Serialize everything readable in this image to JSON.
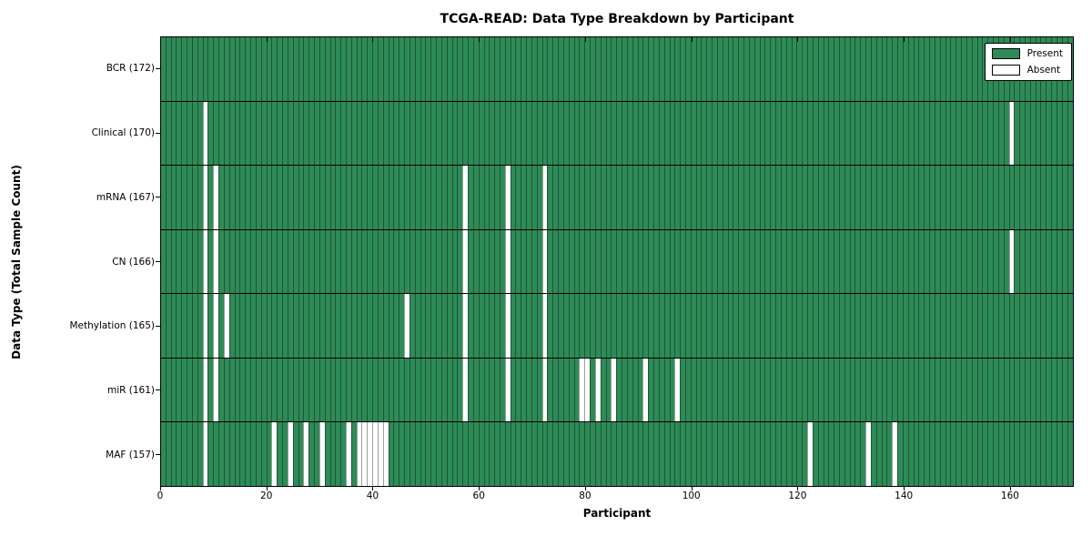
{
  "chart_data": {
    "type": "heatmap",
    "title": "TCGA-READ: Data Type Breakdown by Participant",
    "xlabel": "Participant",
    "ylabel": "Data Type (Total Sample Count)",
    "n_participants": 172,
    "x_ticks": [
      0,
      20,
      40,
      60,
      80,
      100,
      120,
      140,
      160
    ],
    "grid": "cell-borders",
    "legend_position": "upper-right",
    "colors": {
      "present": "#2e8b57",
      "absent": "#ffffff"
    },
    "legend": [
      {
        "label": "Present",
        "color": "#2e8b57"
      },
      {
        "label": "Absent",
        "color": "#ffffff"
      }
    ],
    "rows": [
      {
        "label": "BCR (172)",
        "data_type": "BCR",
        "total": 172,
        "absent_participants": []
      },
      {
        "label": "Clinical (170)",
        "data_type": "Clinical",
        "total": 170,
        "absent_participants": [
          8,
          160
        ]
      },
      {
        "label": "mRNA (167)",
        "data_type": "mRNA",
        "total": 167,
        "absent_participants": [
          8,
          10,
          57,
          65,
          72
        ]
      },
      {
        "label": "CN (166)",
        "data_type": "CN",
        "total": 166,
        "absent_participants": [
          8,
          10,
          57,
          65,
          72,
          160
        ]
      },
      {
        "label": "Methylation (165)",
        "data_type": "Methylation",
        "total": 165,
        "absent_participants": [
          8,
          10,
          12,
          46,
          57,
          65,
          72
        ]
      },
      {
        "label": "miR (161)",
        "data_type": "miR",
        "total": 161,
        "absent_participants": [
          8,
          10,
          57,
          65,
          72,
          79,
          80,
          82,
          85,
          91,
          97
        ]
      },
      {
        "label": "MAF (157)",
        "data_type": "MAF",
        "total": 157,
        "absent_participants": [
          8,
          21,
          24,
          27,
          30,
          35,
          37,
          38,
          39,
          40,
          41,
          42,
          122,
          133,
          138
        ]
      }
    ]
  }
}
